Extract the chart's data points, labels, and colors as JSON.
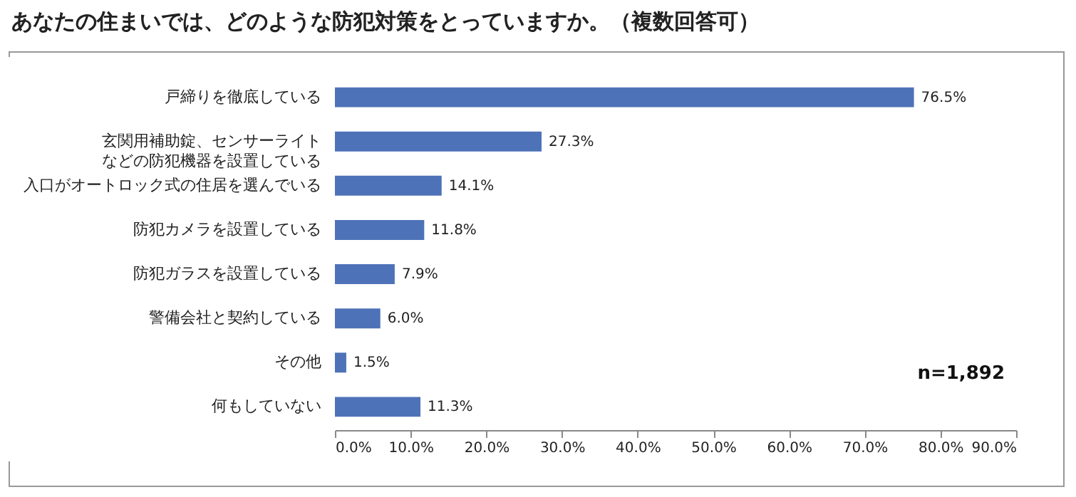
{
  "chart_data": {
    "type": "bar",
    "orientation": "horizontal",
    "title": "あなたの住まいでは、どのような防犯対策をとっていますか。（複数回答可）",
    "categories": [
      "戸締りを徹底している",
      "玄関用補助錠、センサーライトなどの防犯機器を設置している",
      "入口がオートロック式の住居を選んでいる",
      "防犯カメラを設置している",
      "防犯ガラスを設置している",
      "警備会社と契約している",
      "その他",
      "何もしていない"
    ],
    "values": [
      76.5,
      27.3,
      14.1,
      11.8,
      7.9,
      6.0,
      1.5,
      11.3
    ],
    "value_labels": [
      "76.5%",
      "27.3%",
      "14.1%",
      "11.8%",
      "7.9%",
      "6.0%",
      "1.5%",
      "11.3%"
    ],
    "color": "#4e72b8",
    "xlim": [
      0,
      90
    ],
    "xticks": [
      {
        "value": 0,
        "label": "0.0%"
      },
      {
        "value": 10,
        "label": "10.0%"
      },
      {
        "value": 20,
        "label": "20.0%"
      },
      {
        "value": 30,
        "label": "30.0%"
      },
      {
        "value": 40,
        "label": "40.0%"
      },
      {
        "value": 50,
        "label": "50.0%"
      },
      {
        "value": 60,
        "label": "60.0%"
      },
      {
        "value": 70,
        "label": "70.0%"
      },
      {
        "value": 80,
        "label": "80.0%"
      },
      {
        "value": 90,
        "label": "90.0%"
      }
    ],
    "grid": false,
    "annotations": [
      "n=1,892"
    ]
  }
}
